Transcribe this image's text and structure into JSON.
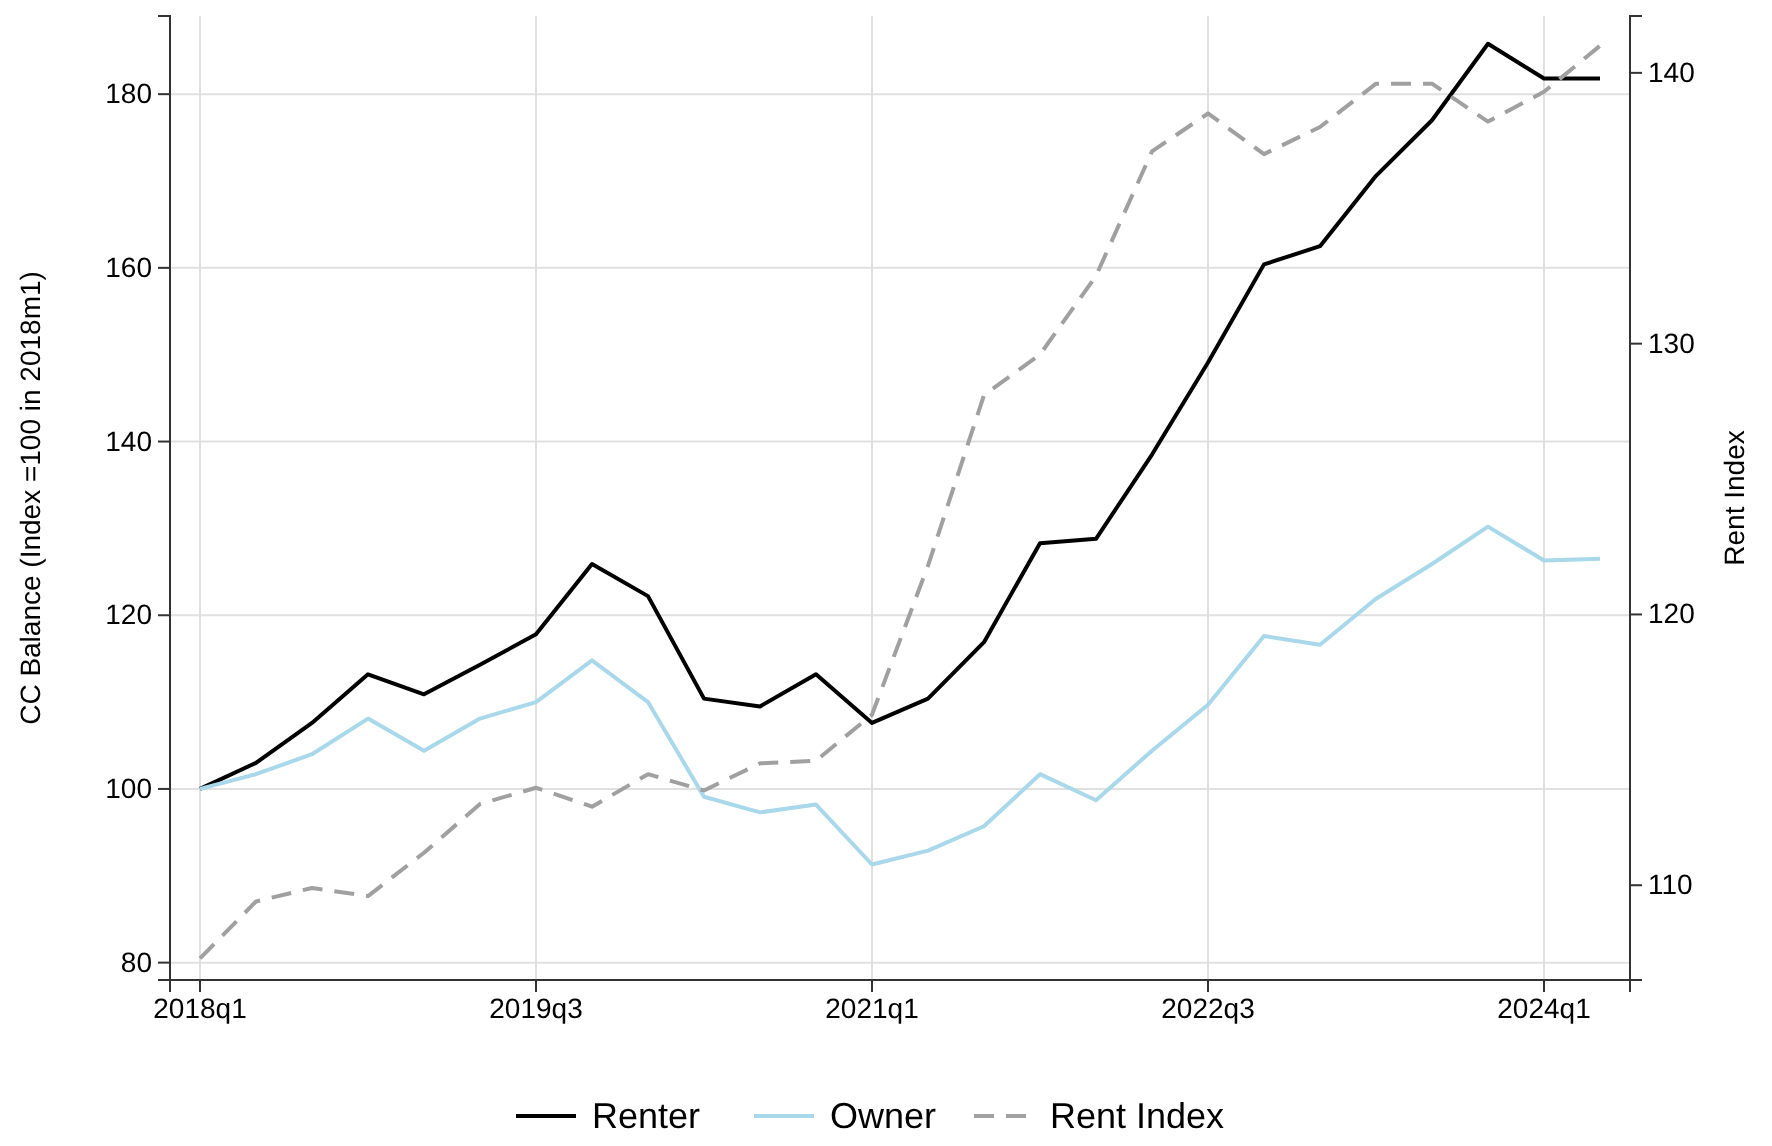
{
  "chart_data": {
    "type": "line",
    "ylabel": "CC Balance (Index =100 in 2018m1)",
    "y2label": "Rent Index",
    "categories": [
      "2018q1",
      null,
      null,
      null,
      null,
      null,
      "2019q3",
      null,
      null,
      null,
      null,
      null,
      "2021q1",
      null,
      null,
      null,
      null,
      null,
      "2022q3",
      null,
      null,
      null,
      null,
      null,
      "2024q1",
      null
    ],
    "series": [
      {
        "name": "Renter",
        "color": "#000000",
        "line_style": "solid",
        "values": [
          100,
          103,
          107.6,
          113.2,
          110.9,
          114.3,
          117.8,
          125.9,
          122.2,
          110.4,
          109.5,
          113.2,
          107.6,
          110.4,
          116.9,
          128.3,
          128.8,
          138.5,
          149.1,
          160.4,
          162.5,
          170.6,
          177,
          185.8,
          181.8,
          181.8
        ]
      },
      {
        "name": "Owner",
        "color": "#a8d8ea",
        "line_style": "solid",
        "values": [
          100,
          101.7,
          104,
          108.1,
          104.4,
          108.1,
          110,
          114.8,
          110,
          99.1,
          97.3,
          98.2,
          91.3,
          92.9,
          95.7,
          101.7,
          98.7,
          104.4,
          109.7,
          117.6,
          116.6,
          121.9,
          125.9,
          130.2,
          126.3,
          126.5
        ]
      },
      {
        "name": "Rent Index",
        "color": "#a0a0a0",
        "line_style": "dashed",
        "axis": "y2",
        "values": [
          107.3,
          109.4,
          109.9,
          109.6,
          111.2,
          113,
          113.6,
          112.9,
          114.1,
          113.5,
          114.5,
          114.6,
          116.3,
          121.8,
          128.1,
          129.6,
          132.5,
          137.1,
          138.5,
          137,
          138,
          139.6,
          139.6,
          138.2,
          139.3,
          141
        ]
      }
    ],
    "ylim": [
      78,
      189
    ],
    "yticks": [
      80,
      100,
      120,
      140,
      160,
      180
    ],
    "y2lim": [
      106.5,
      142.1
    ],
    "y2ticks": [
      110,
      120,
      130,
      140
    ],
    "grid": true,
    "legend": "bottom"
  }
}
